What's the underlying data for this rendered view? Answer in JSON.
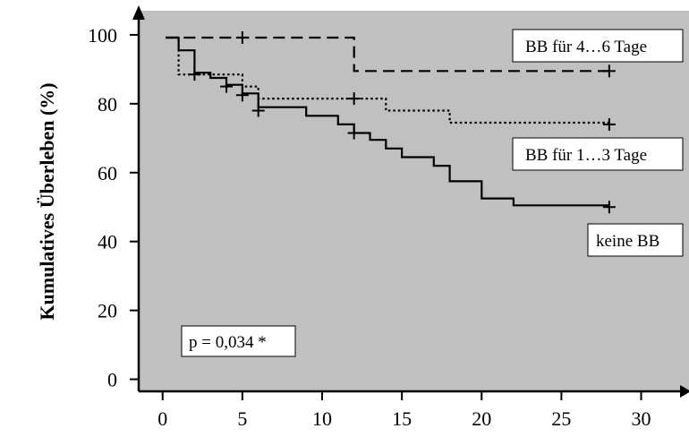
{
  "chart_data": {
    "type": "line",
    "title": "",
    "xlabel": "",
    "ylabel": "Kumulatives Überleben (%)",
    "xlim": [
      -1.5,
      33
    ],
    "ylim": [
      -3.5,
      107
    ],
    "x_ticks": [
      0,
      5,
      10,
      15,
      20,
      25,
      30
    ],
    "y_ticks": [
      0,
      20,
      40,
      60,
      80,
      100
    ],
    "x_tick_labels": [
      "0",
      "5",
      "10",
      "15",
      "20",
      "25",
      "30"
    ],
    "y_tick_labels": [
      "0",
      "20",
      "40",
      "60",
      "80",
      "100"
    ],
    "background": "#c0c0c0",
    "grid": false,
    "series": [
      {
        "name": "BB für 4…6 Tage",
        "style": "dashed",
        "points": [
          [
            0.2,
            99.2
          ],
          [
            12,
            99.2
          ],
          [
            12,
            89.5
          ],
          [
            28,
            89.5
          ]
        ],
        "censor_marks": [
          [
            5,
            99.2
          ],
          [
            28,
            89.5
          ]
        ]
      },
      {
        "name": "BB für 1…3 Tage",
        "style": "dotted",
        "points": [
          [
            0.2,
            99.2
          ],
          [
            1,
            99.2
          ],
          [
            1,
            88.5
          ],
          [
            5,
            88.5
          ],
          [
            5,
            85
          ],
          [
            6,
            85
          ],
          [
            6,
            81.5
          ],
          [
            14,
            81.5
          ],
          [
            14,
            78
          ],
          [
            18,
            78
          ],
          [
            18,
            74.5
          ],
          [
            28,
            74.5
          ]
        ],
        "censor_marks": [
          [
            12,
            81.5
          ],
          [
            28,
            74
          ]
        ]
      },
      {
        "name": "keine BB",
        "style": "solid",
        "points": [
          [
            0.2,
            99.2
          ],
          [
            1,
            99.2
          ],
          [
            1,
            95.5
          ],
          [
            2,
            95.5
          ],
          [
            2,
            89
          ],
          [
            3,
            89
          ],
          [
            3,
            87.5
          ],
          [
            4,
            87.5
          ],
          [
            4,
            85.5
          ],
          [
            5,
            85.5
          ],
          [
            5,
            83
          ],
          [
            6,
            83
          ],
          [
            6,
            79
          ],
          [
            9,
            79
          ],
          [
            9,
            76.5
          ],
          [
            11,
            76.5
          ],
          [
            11,
            74
          ],
          [
            12,
            74
          ],
          [
            12,
            71.5
          ],
          [
            13,
            71.5
          ],
          [
            13,
            69.5
          ],
          [
            14,
            69.5
          ],
          [
            14,
            67
          ],
          [
            15,
            67
          ],
          [
            15,
            64.5
          ],
          [
            17,
            64.5
          ],
          [
            17,
            62
          ],
          [
            18,
            62
          ],
          [
            18,
            57.5
          ],
          [
            20,
            57.5
          ],
          [
            20,
            52.5
          ],
          [
            22,
            52.5
          ],
          [
            22,
            50.5
          ],
          [
            28,
            50.5
          ]
        ],
        "censor_marks": [
          [
            2,
            88.5
          ],
          [
            4,
            85
          ],
          [
            5,
            82.5
          ],
          [
            6,
            78
          ],
          [
            12,
            71.5
          ],
          [
            28,
            50
          ]
        ]
      }
    ],
    "annotations": [
      {
        "text": "BB für 4…6 Tage"
      },
      {
        "text": "BB für 1…3 Tage"
      },
      {
        "text": "keine BB"
      },
      {
        "text": "p = 0,034 *"
      }
    ]
  }
}
